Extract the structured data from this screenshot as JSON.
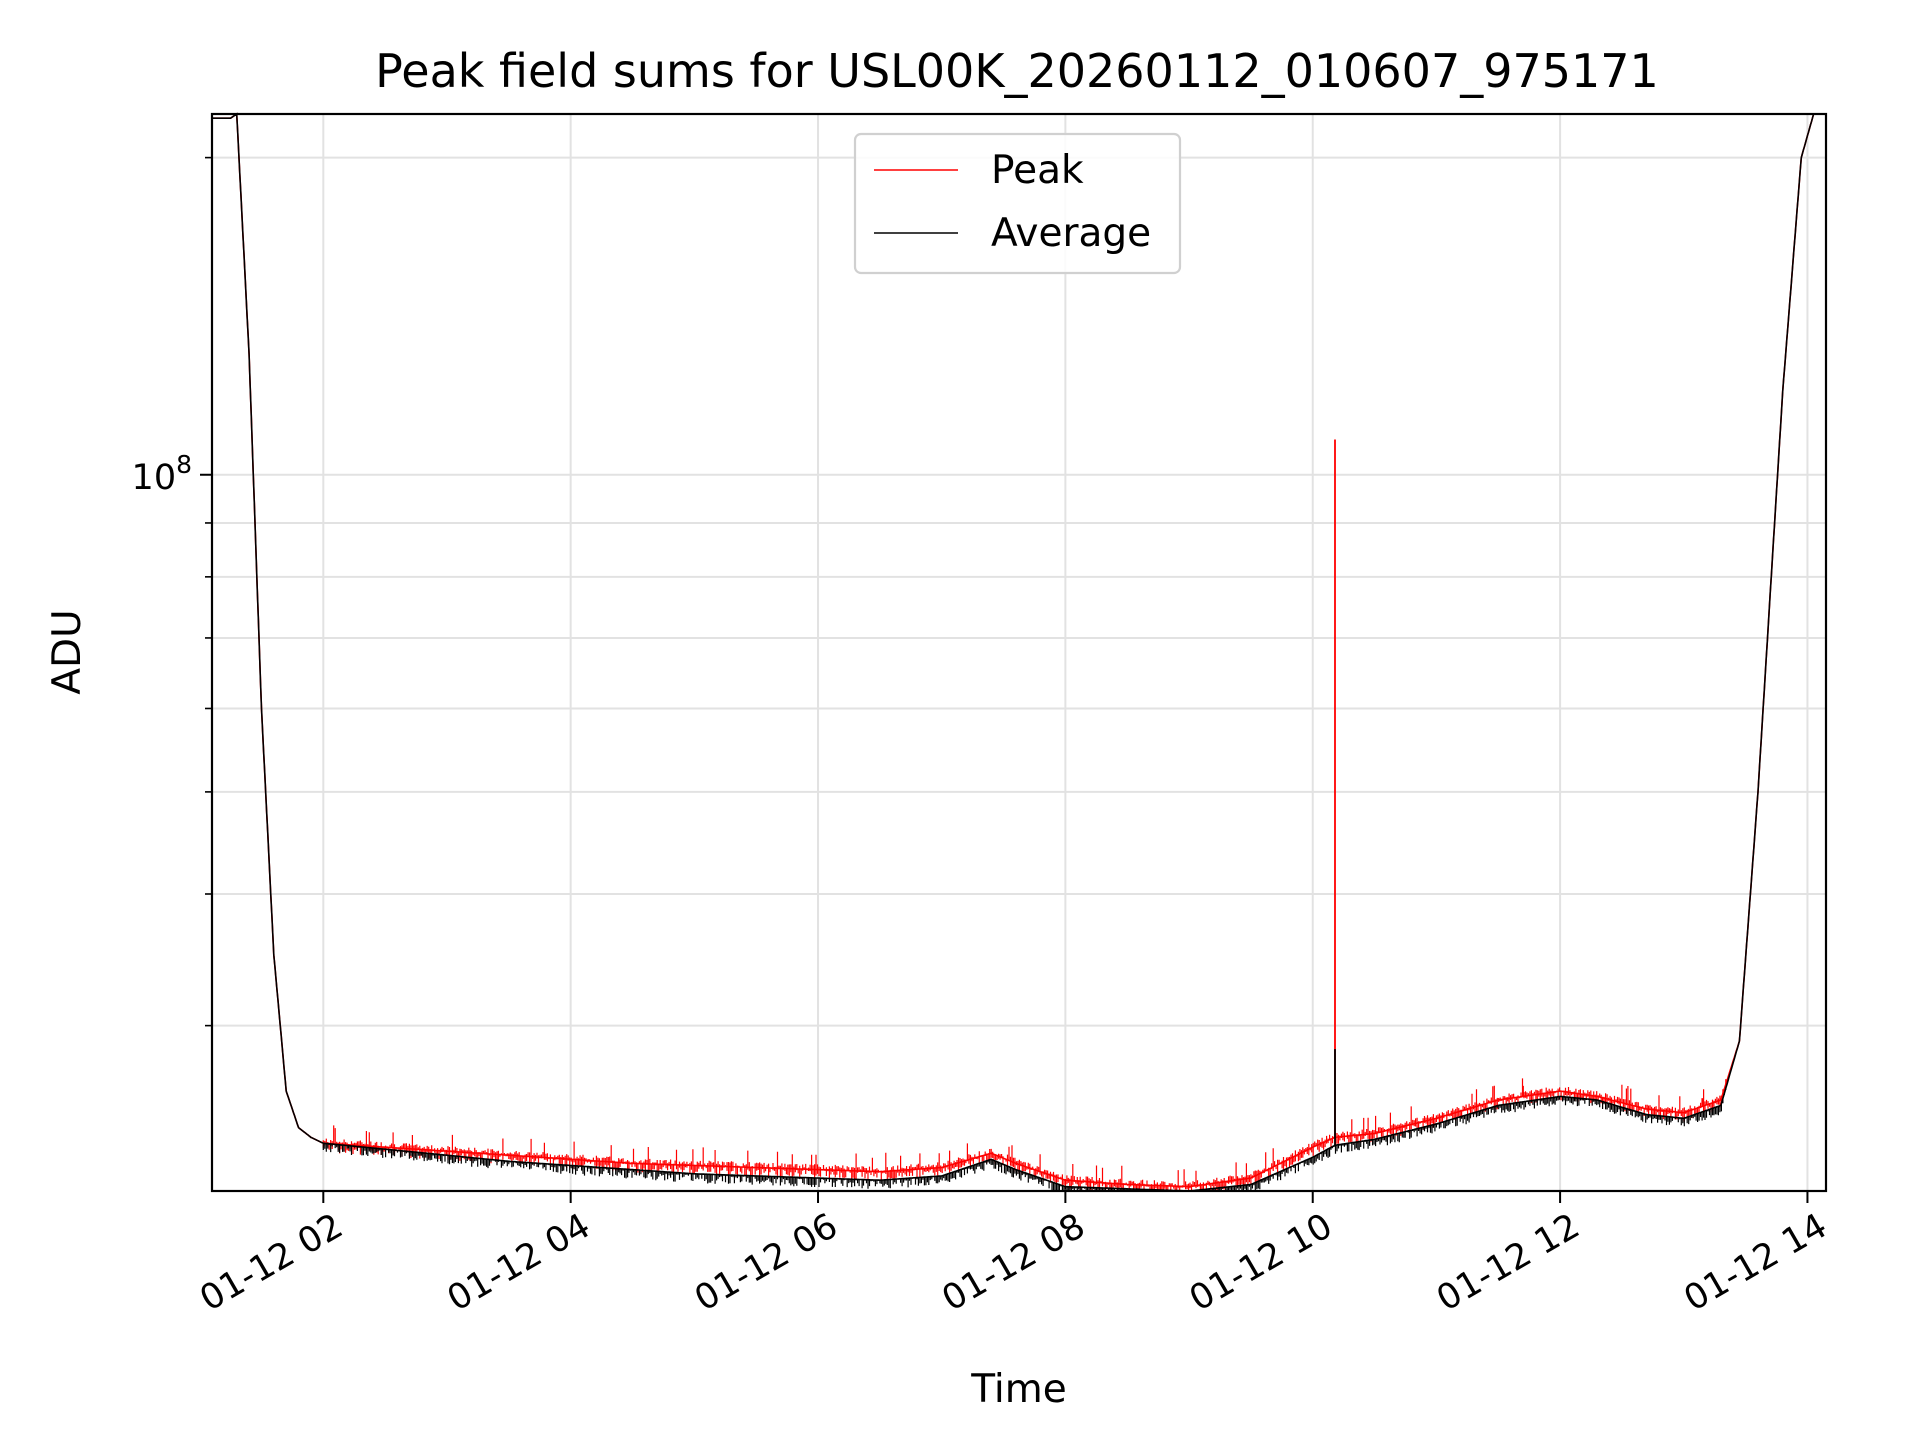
{
  "chart_data": {
    "type": "line",
    "title": "Peak field sums for USL00K_20260112_010607_975171",
    "xlabel": "Time",
    "ylabel": "ADU",
    "yscale": "log",
    "xlim": [
      1.1,
      14.15
    ],
    "ylim": [
      20900000.0,
      220000000.0
    ],
    "x_tick_values": [
      2,
      4,
      6,
      8,
      10,
      12,
      14
    ],
    "x_tick_labels": [
      "01-12 02",
      "01-12 04",
      "01-12 06",
      "01-12 08",
      "01-12 10",
      "01-12 12",
      "01-12 14"
    ],
    "y_major_tick": {
      "value": 100000000.0,
      "base": "10",
      "exponent": "8"
    },
    "y_minor_ticks": [
      20000000.0,
      30000000.0,
      40000000.0,
      50000000.0,
      60000000.0,
      70000000.0,
      80000000.0,
      90000000.0,
      200000000.0
    ],
    "grid": true,
    "legend_position": "upper center",
    "series": [
      {
        "name": "Peak",
        "color": "#ff0000",
        "x": [
          1.1,
          1.25,
          1.3,
          1.4,
          1.5,
          1.6,
          1.7,
          1.8,
          1.9,
          2.0,
          2.5,
          3.0,
          3.5,
          4.0,
          4.5,
          5.0,
          5.5,
          6.0,
          6.5,
          7.0,
          7.4,
          7.6,
          8.0,
          8.5,
          9.0,
          9.5,
          10.0,
          10.18,
          10.5,
          11.0,
          11.5,
          12.0,
          12.3,
          12.7,
          13.0,
          13.3,
          13.45,
          13.6,
          13.8,
          13.95,
          14.05,
          14.15
        ],
        "values": [
          218000000.0,
          218000000.0,
          220000000.0,
          130000000.0,
          60000000.0,
          35000000.0,
          26000000.0,
          24000000.0,
          23500000.0,
          23200000.0,
          23000000.0,
          22800000.0,
          22600000.0,
          22400000.0,
          22200000.0,
          22100000.0,
          22000000.0,
          21900000.0,
          21800000.0,
          22000000.0,
          22700000.0,
          22200000.0,
          21400000.0,
          21200000.0,
          21100000.0,
          21500000.0,
          23000000.0,
          23500000.0,
          23700000.0,
          24500000.0,
          25500000.0,
          26000000.0,
          25700000.0,
          25000000.0,
          24800000.0,
          25500000.0,
          29000000.0,
          50000000.0,
          120000000.0,
          200000000.0,
          220000000.0,
          220000000.0
        ],
        "spikes": [
          {
            "x": 10.18,
            "value": 108000000.0
          },
          {
            "x": 11.7,
            "value": 26300000.0
          },
          {
            "x": 13.15,
            "value": 25600000.0
          }
        ]
      },
      {
        "name": "Average",
        "color": "#000000",
        "x": [
          1.1,
          1.25,
          1.3,
          1.4,
          1.5,
          1.6,
          1.7,
          1.8,
          1.9,
          2.0,
          2.5,
          3.0,
          3.5,
          4.0,
          4.5,
          5.0,
          5.5,
          6.0,
          6.5,
          7.0,
          7.4,
          7.6,
          8.0,
          8.5,
          9.0,
          9.5,
          10.0,
          10.18,
          10.5,
          11.0,
          11.5,
          12.0,
          12.3,
          12.7,
          13.0,
          13.3,
          13.45,
          13.6,
          13.8,
          13.95,
          14.05,
          14.15
        ],
        "values": [
          218000000.0,
          218000000.0,
          220000000.0,
          130000000.0,
          60000000.0,
          35000000.0,
          26000000.0,
          24000000.0,
          23500000.0,
          23200000.0,
          22900000.0,
          22600000.0,
          22300000.0,
          22100000.0,
          21900000.0,
          21700000.0,
          21600000.0,
          21500000.0,
          21400000.0,
          21600000.0,
          22400000.0,
          21900000.0,
          21100000.0,
          21000000.0,
          20900000.0,
          21200000.0,
          22500000.0,
          23100000.0,
          23400000.0,
          24200000.0,
          25200000.0,
          25700000.0,
          25500000.0,
          24700000.0,
          24500000.0,
          25200000.0,
          29000000.0,
          50000000.0,
          120000000.0,
          200000000.0,
          220000000.0,
          220000000.0
        ],
        "spikes": [
          {
            "x": 10.18,
            "value": 28500000.0
          }
        ]
      }
    ]
  }
}
